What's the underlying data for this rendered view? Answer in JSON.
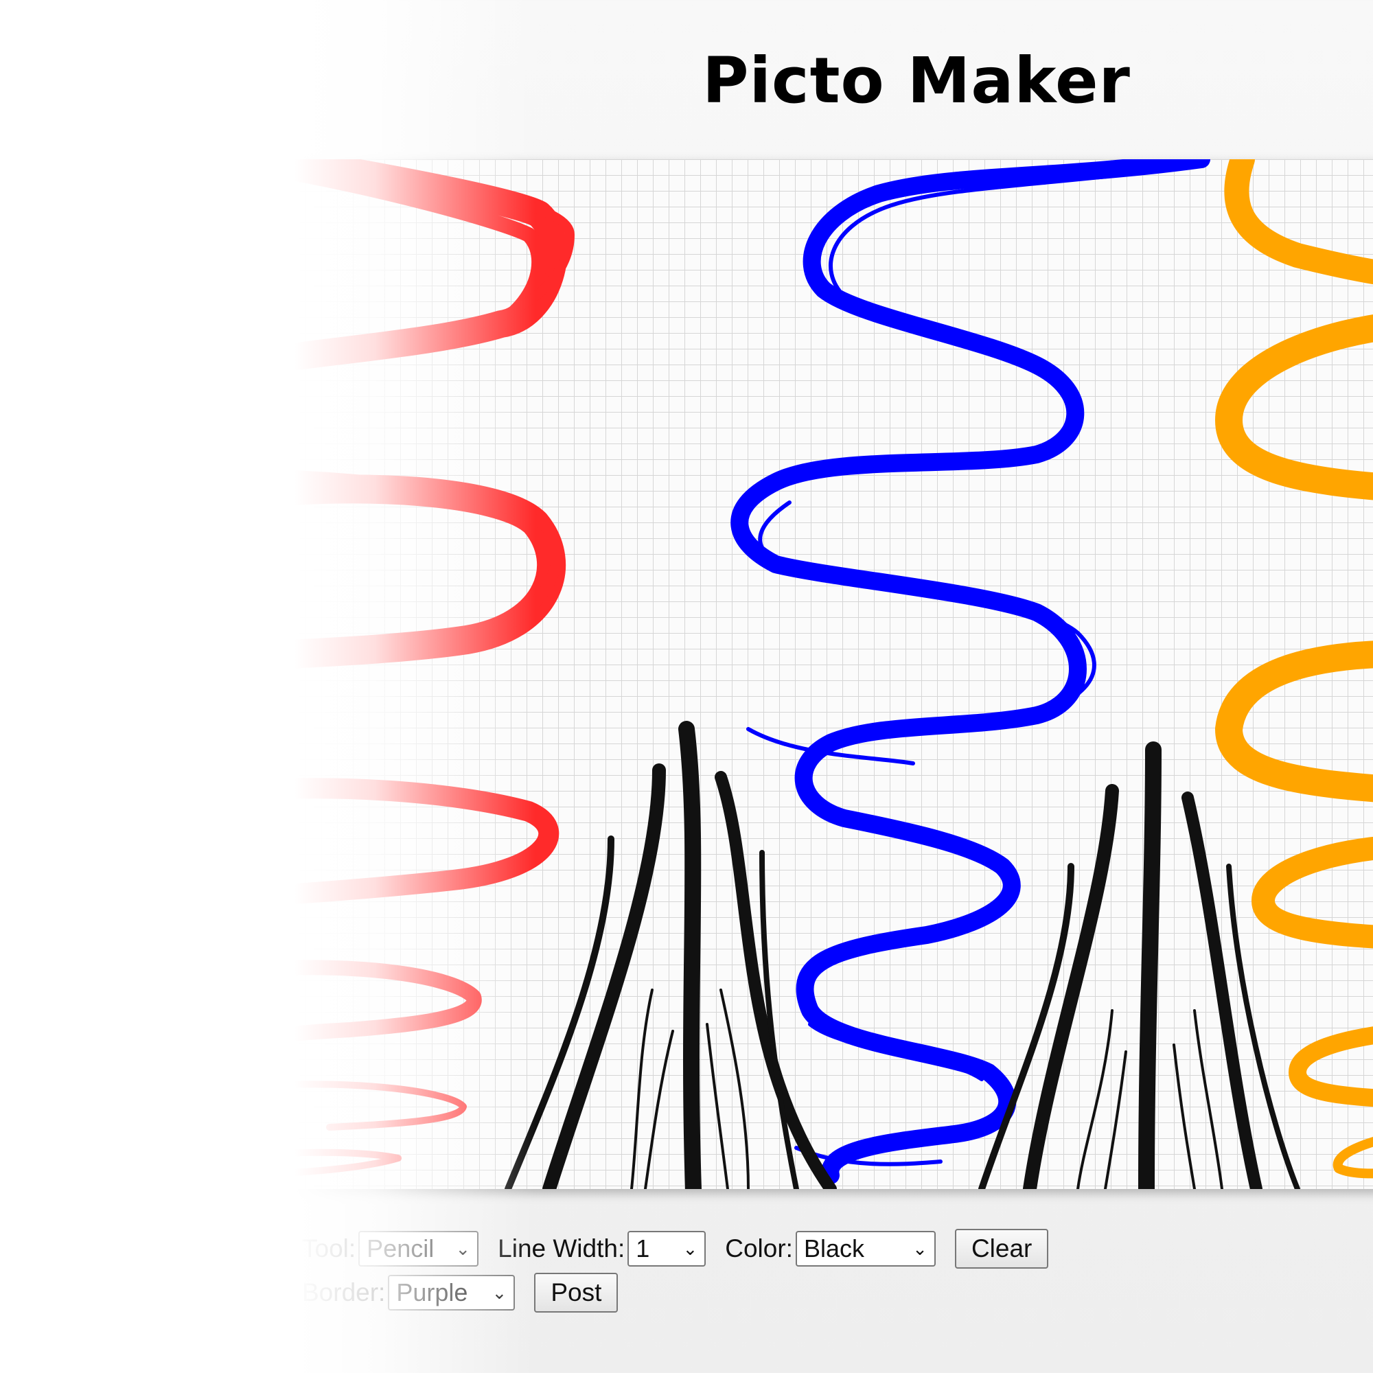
{
  "app": {
    "title": "Picto Maker"
  },
  "toolbar": {
    "tool_label": "Tool:",
    "tool_value": "Pencil",
    "line_width_label": "Line Width:",
    "line_width_value": "1",
    "color_label": "Color:",
    "color_value": "Black",
    "clear_label": "Clear",
    "border_label": "Border:",
    "border_value": "Purple",
    "post_label": "Post"
  },
  "canvas": {
    "stroke_colors": {
      "red": "#ff2a2a",
      "blue": "#0000ff",
      "orange": "#ffa500",
      "black": "#111111"
    },
    "icons": [
      "chevron-down-icon"
    ]
  }
}
